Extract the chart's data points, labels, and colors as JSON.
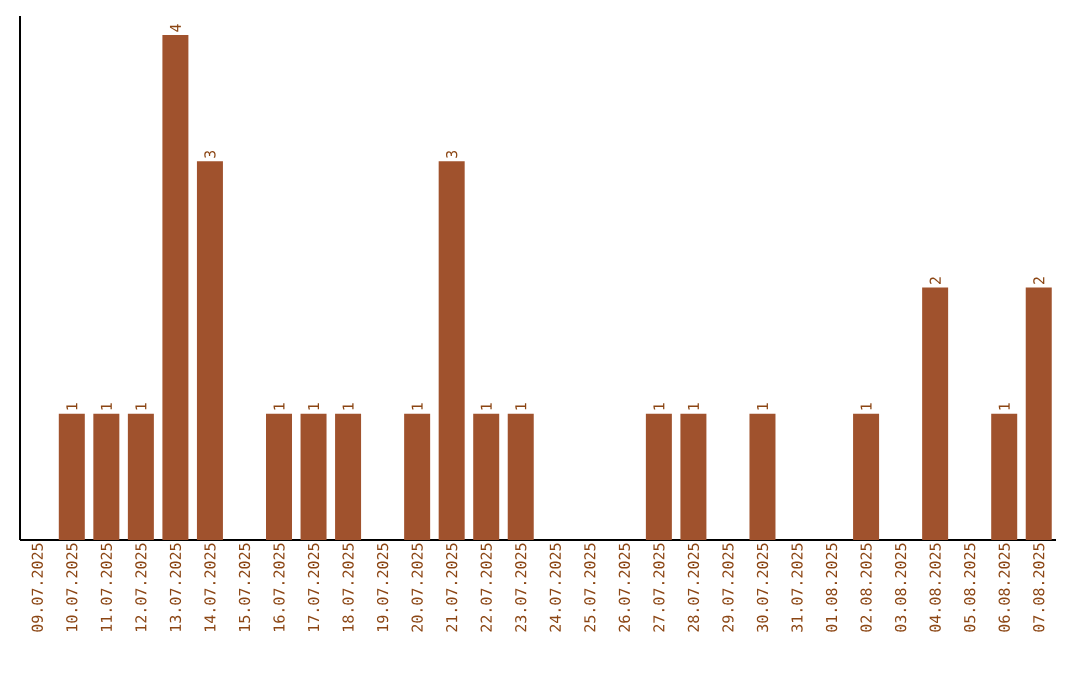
{
  "chart_data": {
    "type": "bar",
    "color": "#a0522d",
    "categories": [
      "09.07.2025",
      "10.07.2025",
      "11.07.2025",
      "12.07.2025",
      "13.07.2025",
      "14.07.2025",
      "15.07.2025",
      "16.07.2025",
      "17.07.2025",
      "18.07.2025",
      "19.07.2025",
      "20.07.2025",
      "21.07.2025",
      "22.07.2025",
      "23.07.2025",
      "24.07.2025",
      "25.07.2025",
      "26.07.2025",
      "27.07.2025",
      "28.07.2025",
      "29.07.2025",
      "30.07.2025",
      "31.07.2025",
      "01.08.2025",
      "02.08.2025",
      "03.08.2025",
      "04.08.2025",
      "05.08.2025",
      "06.08.2025",
      "07.08.2025"
    ],
    "values": [
      0,
      1,
      1,
      1,
      4,
      3,
      0,
      1,
      1,
      1,
      0,
      1,
      3,
      1,
      1,
      0,
      0,
      0,
      1,
      1,
      0,
      1,
      0,
      0,
      1,
      0,
      2,
      0,
      1,
      2
    ],
    "value_labels": [
      null,
      "1",
      "1",
      "1",
      "4",
      "3",
      null,
      "1",
      "1",
      "1",
      null,
      "1",
      "3",
      "1",
      "1",
      null,
      null,
      null,
      "1",
      "1",
      null,
      "1",
      null,
      null,
      "1",
      null,
      "2",
      null,
      "1",
      "2"
    ],
    "ylim": [
      0,
      4.15
    ],
    "tick_labels": "x",
    "grid": false
  }
}
